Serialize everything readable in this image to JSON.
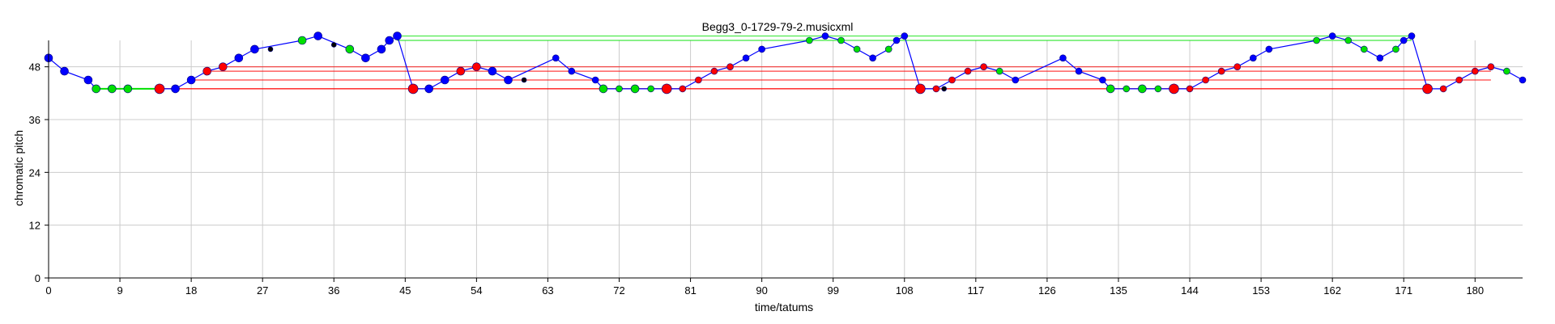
{
  "chart_data": {
    "type": "scatter",
    "title": "Begg3_0-1729-79-2.musicxml",
    "xlabel": "time/tatums",
    "ylabel": "chromatic pitch",
    "xlim": [
      0,
      186
    ],
    "ylim": [
      0,
      54
    ],
    "xticks": [
      0,
      9,
      18,
      27,
      36,
      45,
      54,
      63,
      72,
      81,
      90,
      99,
      108,
      117,
      126,
      135,
      144,
      153,
      162,
      171,
      180
    ],
    "yticks": [
      0,
      12,
      24,
      36,
      48
    ],
    "grid": true,
    "colors": {
      "melody": "#0000ff",
      "green": "#00e000",
      "red": "#ff0000",
      "black": "#000000",
      "grid": "#cccccc"
    },
    "melody_line": [
      [
        0,
        50
      ],
      [
        2,
        47
      ],
      [
        5,
        45
      ],
      [
        6,
        43
      ],
      [
        8,
        43
      ],
      [
        10,
        43
      ],
      [
        14,
        43
      ],
      [
        16,
        43
      ],
      [
        18,
        45
      ],
      [
        20,
        47
      ],
      [
        22,
        48
      ],
      [
        24,
        50
      ],
      [
        26,
        52
      ],
      [
        32,
        54
      ],
      [
        34,
        55
      ],
      [
        38,
        52
      ],
      [
        40,
        50
      ],
      [
        42,
        52
      ],
      [
        43,
        54
      ],
      [
        44,
        55
      ],
      [
        46,
        43
      ],
      [
        48,
        43
      ],
      [
        50,
        45
      ],
      [
        52,
        47
      ],
      [
        54,
        48
      ],
      [
        56,
        47
      ],
      [
        58,
        45
      ],
      [
        64,
        50
      ],
      [
        66,
        47
      ],
      [
        69,
        45
      ],
      [
        70,
        43
      ],
      [
        72,
        43
      ],
      [
        74,
        43
      ],
      [
        76,
        43
      ],
      [
        78,
        43
      ],
      [
        80,
        43
      ],
      [
        82,
        45
      ],
      [
        84,
        47
      ],
      [
        86,
        48
      ],
      [
        88,
        50
      ],
      [
        90,
        52
      ],
      [
        96,
        54
      ],
      [
        98,
        55
      ],
      [
        100,
        54
      ],
      [
        102,
        52
      ],
      [
        104,
        50
      ],
      [
        106,
        52
      ],
      [
        107,
        54
      ],
      [
        108,
        55
      ],
      [
        110,
        43
      ],
      [
        112,
        43
      ],
      [
        114,
        45
      ],
      [
        116,
        47
      ],
      [
        118,
        48
      ],
      [
        120,
        47
      ],
      [
        122,
        45
      ],
      [
        128,
        50
      ],
      [
        130,
        47
      ],
      [
        133,
        45
      ],
      [
        134,
        43
      ],
      [
        136,
        43
      ],
      [
        138,
        43
      ],
      [
        140,
        43
      ],
      [
        142,
        43
      ],
      [
        144,
        43
      ],
      [
        146,
        45
      ],
      [
        148,
        47
      ],
      [
        150,
        48
      ],
      [
        152,
        50
      ],
      [
        154,
        52
      ],
      [
        160,
        54
      ],
      [
        162,
        55
      ],
      [
        164,
        54
      ],
      [
        166,
        52
      ],
      [
        168,
        50
      ],
      [
        170,
        52
      ],
      [
        171,
        54
      ],
      [
        172,
        55
      ],
      [
        174,
        43
      ],
      [
        176,
        43
      ],
      [
        178,
        45
      ],
      [
        180,
        47
      ],
      [
        182,
        48
      ],
      [
        184,
        47
      ],
      [
        186,
        45
      ]
    ],
    "green_line": [
      [
        6,
        43
      ],
      [
        14,
        43
      ]
    ],
    "hlines": [
      {
        "color": "green",
        "y": 55,
        "x0": 44,
        "x1": 172
      },
      {
        "color": "green",
        "y": 54,
        "x0": 44,
        "x1": 172
      },
      {
        "color": "red",
        "y": 48,
        "x0": 22,
        "x1": 182
      },
      {
        "color": "red",
        "y": 47,
        "x0": 20,
        "x1": 182
      },
      {
        "color": "red",
        "y": 45,
        "x0": 18,
        "x1": 182
      },
      {
        "color": "red",
        "y": 43,
        "x0": 14,
        "x1": 174
      },
      {
        "color": "red",
        "y": 43,
        "x0": 14,
        "x1": 174
      }
    ],
    "points": [
      {
        "x": 0,
        "y": 50,
        "c": "blue",
        "r": 5
      },
      {
        "x": 2,
        "y": 47,
        "c": "blue",
        "r": 5
      },
      {
        "x": 5,
        "y": 45,
        "c": "blue",
        "r": 5
      },
      {
        "x": 6,
        "y": 43,
        "c": "green",
        "r": 5
      },
      {
        "x": 8,
        "y": 43,
        "c": "green",
        "r": 5
      },
      {
        "x": 10,
        "y": 43,
        "c": "green",
        "r": 5
      },
      {
        "x": 14,
        "y": 43,
        "c": "red",
        "r": 6
      },
      {
        "x": 16,
        "y": 43,
        "c": "blue",
        "r": 5
      },
      {
        "x": 18,
        "y": 45,
        "c": "blue",
        "r": 5
      },
      {
        "x": 20,
        "y": 47,
        "c": "red",
        "r": 5
      },
      {
        "x": 22,
        "y": 48,
        "c": "red",
        "r": 5
      },
      {
        "x": 24,
        "y": 50,
        "c": "blue",
        "r": 5
      },
      {
        "x": 26,
        "y": 52,
        "c": "blue",
        "r": 5
      },
      {
        "x": 28,
        "y": 52,
        "c": "black",
        "r": 3
      },
      {
        "x": 32,
        "y": 54,
        "c": "green",
        "r": 5
      },
      {
        "x": 34,
        "y": 55,
        "c": "blue",
        "r": 5
      },
      {
        "x": 36,
        "y": 53,
        "c": "black",
        "r": 3
      },
      {
        "x": 38,
        "y": 52,
        "c": "green",
        "r": 5
      },
      {
        "x": 40,
        "y": 50,
        "c": "blue",
        "r": 5
      },
      {
        "x": 42,
        "y": 52,
        "c": "blue",
        "r": 5
      },
      {
        "x": 43,
        "y": 54,
        "c": "blue",
        "r": 5
      },
      {
        "x": 44,
        "y": 55,
        "c": "blue",
        "r": 5
      },
      {
        "x": 46,
        "y": 43,
        "c": "red",
        "r": 6
      },
      {
        "x": 48,
        "y": 43,
        "c": "blue",
        "r": 5
      },
      {
        "x": 50,
        "y": 45,
        "c": "blue",
        "r": 5
      },
      {
        "x": 52,
        "y": 47,
        "c": "red",
        "r": 5
      },
      {
        "x": 54,
        "y": 48,
        "c": "red",
        "r": 5
      },
      {
        "x": 56,
        "y": 47,
        "c": "blue",
        "r": 5
      },
      {
        "x": 58,
        "y": 45,
        "c": "blue",
        "r": 5
      },
      {
        "x": 60,
        "y": 45,
        "c": "black",
        "r": 3
      },
      {
        "x": 64,
        "y": 50,
        "c": "blue",
        "r": 4
      },
      {
        "x": 66,
        "y": 47,
        "c": "blue",
        "r": 4
      },
      {
        "x": 69,
        "y": 45,
        "c": "blue",
        "r": 4
      },
      {
        "x": 70,
        "y": 43,
        "c": "green",
        "r": 5
      },
      {
        "x": 72,
        "y": 43,
        "c": "green",
        "r": 4
      },
      {
        "x": 74,
        "y": 43,
        "c": "green",
        "r": 5
      },
      {
        "x": 76,
        "y": 43,
        "c": "green",
        "r": 4
      },
      {
        "x": 78,
        "y": 43,
        "c": "red",
        "r": 6
      },
      {
        "x": 80,
        "y": 43,
        "c": "red",
        "r": 4
      },
      {
        "x": 82,
        "y": 45,
        "c": "red",
        "r": 4
      },
      {
        "x": 84,
        "y": 47,
        "c": "red",
        "r": 4
      },
      {
        "x": 86,
        "y": 48,
        "c": "red",
        "r": 4
      },
      {
        "x": 88,
        "y": 50,
        "c": "blue",
        "r": 4
      },
      {
        "x": 90,
        "y": 52,
        "c": "blue",
        "r": 4
      },
      {
        "x": 96,
        "y": 54,
        "c": "green",
        "r": 4
      },
      {
        "x": 98,
        "y": 55,
        "c": "blue",
        "r": 4
      },
      {
        "x": 100,
        "y": 54,
        "c": "green",
        "r": 4
      },
      {
        "x": 102,
        "y": 52,
        "c": "green",
        "r": 4
      },
      {
        "x": 104,
        "y": 50,
        "c": "blue",
        "r": 4
      },
      {
        "x": 106,
        "y": 52,
        "c": "green",
        "r": 4
      },
      {
        "x": 107,
        "y": 54,
        "c": "blue",
        "r": 4
      },
      {
        "x": 108,
        "y": 55,
        "c": "blue",
        "r": 4
      },
      {
        "x": 110,
        "y": 43,
        "c": "red",
        "r": 6
      },
      {
        "x": 112,
        "y": 43,
        "c": "red",
        "r": 4
      },
      {
        "x": 113,
        "y": 43,
        "c": "black",
        "r": 3
      },
      {
        "x": 114,
        "y": 45,
        "c": "red",
        "r": 4
      },
      {
        "x": 116,
        "y": 47,
        "c": "red",
        "r": 4
      },
      {
        "x": 118,
        "y": 48,
        "c": "red",
        "r": 4
      },
      {
        "x": 120,
        "y": 47,
        "c": "green",
        "r": 4
      },
      {
        "x": 122,
        "y": 45,
        "c": "blue",
        "r": 4
      },
      {
        "x": 128,
        "y": 50,
        "c": "blue",
        "r": 4
      },
      {
        "x": 130,
        "y": 47,
        "c": "blue",
        "r": 4
      },
      {
        "x": 133,
        "y": 45,
        "c": "blue",
        "r": 4
      },
      {
        "x": 134,
        "y": 43,
        "c": "green",
        "r": 5
      },
      {
        "x": 136,
        "y": 43,
        "c": "green",
        "r": 4
      },
      {
        "x": 138,
        "y": 43,
        "c": "green",
        "r": 5
      },
      {
        "x": 140,
        "y": 43,
        "c": "green",
        "r": 4
      },
      {
        "x": 142,
        "y": 43,
        "c": "red",
        "r": 6
      },
      {
        "x": 144,
        "y": 43,
        "c": "red",
        "r": 4
      },
      {
        "x": 146,
        "y": 45,
        "c": "red",
        "r": 4
      },
      {
        "x": 148,
        "y": 47,
        "c": "red",
        "r": 4
      },
      {
        "x": 150,
        "y": 48,
        "c": "red",
        "r": 4
      },
      {
        "x": 152,
        "y": 50,
        "c": "blue",
        "r": 4
      },
      {
        "x": 154,
        "y": 52,
        "c": "blue",
        "r": 4
      },
      {
        "x": 160,
        "y": 54,
        "c": "green",
        "r": 4
      },
      {
        "x": 162,
        "y": 55,
        "c": "blue",
        "r": 4
      },
      {
        "x": 164,
        "y": 54,
        "c": "green",
        "r": 4
      },
      {
        "x": 166,
        "y": 52,
        "c": "green",
        "r": 4
      },
      {
        "x": 168,
        "y": 50,
        "c": "blue",
        "r": 4
      },
      {
        "x": 170,
        "y": 52,
        "c": "green",
        "r": 4
      },
      {
        "x": 171,
        "y": 54,
        "c": "blue",
        "r": 4
      },
      {
        "x": 172,
        "y": 55,
        "c": "blue",
        "r": 4
      },
      {
        "x": 174,
        "y": 43,
        "c": "red",
        "r": 6
      },
      {
        "x": 176,
        "y": 43,
        "c": "red",
        "r": 4
      },
      {
        "x": 178,
        "y": 45,
        "c": "red",
        "r": 4
      },
      {
        "x": 180,
        "y": 47,
        "c": "red",
        "r": 4
      },
      {
        "x": 182,
        "y": 48,
        "c": "red",
        "r": 4
      },
      {
        "x": 184,
        "y": 47,
        "c": "green",
        "r": 4
      },
      {
        "x": 186,
        "y": 45,
        "c": "blue",
        "r": 4
      }
    ]
  }
}
